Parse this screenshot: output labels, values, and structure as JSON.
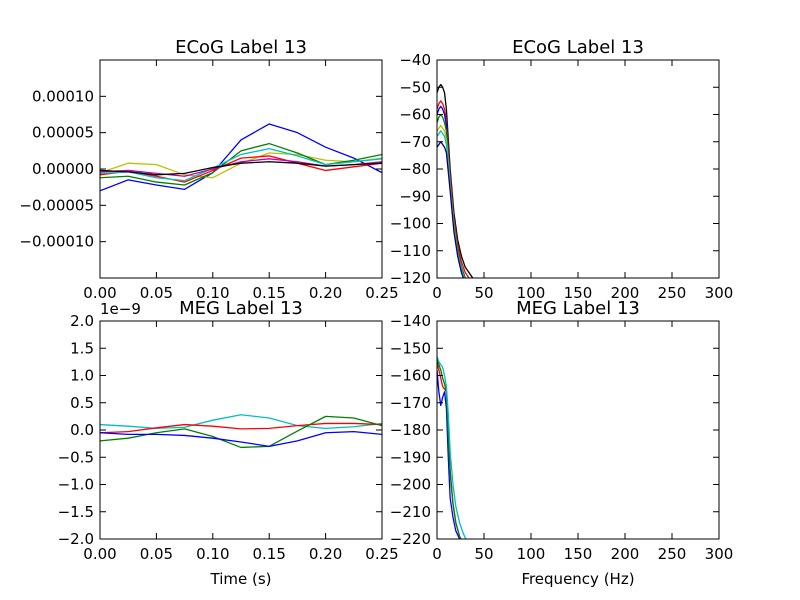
{
  "chart_data": [
    {
      "type": "line",
      "title": "ECoG Label 13",
      "xlabel": "",
      "ylabel": "",
      "xlim": [
        0,
        0.25
      ],
      "ylim": [
        -0.00015,
        0.00015
      ],
      "xticks": [
        0.0,
        0.05,
        0.1,
        0.15,
        0.2,
        0.25
      ],
      "xtick_labels": [
        "0.00",
        "0.05",
        "0.10",
        "0.15",
        "0.20",
        "0.25"
      ],
      "yticks": [
        -0.0001,
        -5e-05,
        0.0,
        5e-05,
        0.0001
      ],
      "ytick_labels": [
        "−0.00010",
        "−0.00005",
        "0.00000",
        "0.00005",
        "0.00010"
      ],
      "x": [
        0.0,
        0.025,
        0.05,
        0.075,
        0.1,
        0.125,
        0.15,
        0.175,
        0.2,
        0.225,
        0.25
      ],
      "series": [
        {
          "color": "#0000ff",
          "values": [
            -3e-05,
            -1.5e-05,
            -2.2e-05,
            -2.8e-05,
            -5e-06,
            4e-05,
            6.2e-05,
            5e-05,
            3e-05,
            1.5e-05,
            -5e-06
          ]
        },
        {
          "color": "#bfbf00",
          "values": [
            -5e-06,
            8e-06,
            6e-06,
            -8e-06,
            -1.2e-05,
            8e-06,
            2.2e-05,
            2e-05,
            1.2e-05,
            1e-05,
            1.5e-05
          ]
        },
        {
          "color": "#008000",
          "values": [
            -1.2e-05,
            -1e-05,
            -1.8e-05,
            -2.2e-05,
            -5e-06,
            2.5e-05,
            3.5e-05,
            2.2e-05,
            6e-06,
            1.2e-05,
            2e-05
          ]
        },
        {
          "color": "#ff0000",
          "values": [
            -8e-06,
            -3e-06,
            -1e-05,
            -1.8e-05,
            -2e-06,
            1.5e-05,
            1.8e-05,
            8e-06,
            -2e-06,
            3e-06,
            8e-06
          ]
        },
        {
          "color": "#00bfbf",
          "values": [
            -6e-06,
            -4e-06,
            -1.2e-05,
            -1.6e-05,
            1e-06,
            2e-05,
            2.8e-05,
            1.8e-05,
            6e-06,
            1e-05,
            1.4e-05
          ]
        },
        {
          "color": "#bf00bf",
          "values": [
            -4e-06,
            -2e-06,
            -6e-06,
            -1e-05,
            0.0,
            1e-05,
            1.4e-05,
            1e-05,
            4e-06,
            6e-06,
            1e-05
          ]
        },
        {
          "color": "#000000",
          "values": [
            -2e-06,
            -4e-06,
            -8e-06,
            -6e-06,
            2e-06,
            8e-06,
            1e-05,
            8e-06,
            4e-06,
            6e-06,
            8e-06
          ]
        }
      ]
    },
    {
      "type": "line",
      "title": "ECoG Label 13",
      "xlabel": "",
      "ylabel": "",
      "xlim": [
        0,
        300
      ],
      "ylim": [
        -120,
        -40
      ],
      "xticks": [
        0,
        50,
        100,
        150,
        200,
        250,
        300
      ],
      "xtick_labels": [
        "0",
        "50",
        "100",
        "150",
        "200",
        "250",
        "300"
      ],
      "yticks": [
        -120,
        -110,
        -100,
        -90,
        -80,
        -70,
        -60,
        -50,
        -40
      ],
      "ytick_labels": [
        "−120",
        "−110",
        "−100",
        "−90",
        "−80",
        "−70",
        "−60",
        "−50",
        "−40"
      ],
      "x": [
        0,
        2,
        4,
        6,
        8,
        10,
        14,
        18,
        22,
        26,
        30,
        34,
        38
      ],
      "series": [
        {
          "color": "#000000",
          "values": [
            -52,
            -50,
            -49,
            -50,
            -52,
            -58,
            -80,
            -96,
            -106,
            -112,
            -116,
            -118,
            -120
          ]
        },
        {
          "color": "#ff0000",
          "values": [
            -58,
            -56,
            -55,
            -56,
            -58,
            -62,
            -82,
            -98,
            -108,
            -114,
            -118,
            -120,
            -122
          ]
        },
        {
          "color": "#0000ff",
          "values": [
            -60,
            -58,
            -57,
            -58,
            -60,
            -64,
            -84,
            -100,
            -110,
            -116,
            -120,
            -122,
            -124
          ]
        },
        {
          "color": "#008000",
          "values": [
            -63,
            -61,
            -60,
            -61,
            -63,
            -66,
            -85,
            -100,
            -110,
            -116,
            -120,
            -122,
            -124
          ]
        },
        {
          "color": "#bfbf00",
          "values": [
            -66,
            -65,
            -64,
            -65,
            -66,
            -69,
            -86,
            -101,
            -111,
            -117,
            -121,
            -123,
            -125
          ]
        },
        {
          "color": "#00bfbf",
          "values": [
            -68,
            -67,
            -66,
            -67,
            -68,
            -71,
            -87,
            -102,
            -111,
            -117,
            -121,
            -123,
            -125
          ]
        },
        {
          "color": "#000080",
          "values": [
            -72,
            -71,
            -70,
            -71,
            -72,
            -74,
            -88,
            -103,
            -112,
            -118,
            -122,
            -124,
            -126
          ]
        }
      ]
    },
    {
      "type": "line",
      "title": "MEG Label 13",
      "xlabel": "Time (s)",
      "ylabel": "",
      "offset_text": "1e−9",
      "xlim": [
        0,
        0.25
      ],
      "ylim": [
        -2.0,
        2.0
      ],
      "xticks": [
        0.0,
        0.05,
        0.1,
        0.15,
        0.2,
        0.25
      ],
      "xtick_labels": [
        "0.00",
        "0.05",
        "0.10",
        "0.15",
        "0.20",
        "0.25"
      ],
      "yticks": [
        -2.0,
        -1.5,
        -1.0,
        -0.5,
        0.0,
        0.5,
        1.0,
        1.5,
        2.0
      ],
      "ytick_labels": [
        "−2.0",
        "−1.5",
        "−1.0",
        "−0.5",
        "0.0",
        "0.5",
        "1.0",
        "1.5",
        "2.0"
      ],
      "x": [
        0.0,
        0.025,
        0.05,
        0.075,
        0.1,
        0.125,
        0.15,
        0.175,
        0.2,
        0.225,
        0.25
      ],
      "series": [
        {
          "color": "#00bfbf",
          "values": [
            0.1,
            0.07,
            0.03,
            0.05,
            0.18,
            0.28,
            0.22,
            0.08,
            0.03,
            0.06,
            0.12
          ]
        },
        {
          "color": "#ff0000",
          "values": [
            -0.05,
            -0.03,
            0.04,
            0.1,
            0.07,
            0.02,
            0.03,
            0.08,
            0.12,
            0.12,
            0.1
          ]
        },
        {
          "color": "#008000",
          "values": [
            -0.2,
            -0.15,
            -0.05,
            0.02,
            -0.12,
            -0.32,
            -0.3,
            -0.02,
            0.25,
            0.22,
            0.08
          ]
        },
        {
          "color": "#0000ff",
          "values": [
            -0.05,
            -0.08,
            -0.08,
            -0.1,
            -0.15,
            -0.22,
            -0.3,
            -0.2,
            -0.05,
            -0.03,
            -0.08
          ]
        }
      ]
    },
    {
      "type": "line",
      "title": "MEG Label 13",
      "xlabel": "Frequency (Hz)",
      "ylabel": "",
      "xlim": [
        0,
        300
      ],
      "ylim": [
        -220,
        -140
      ],
      "xticks": [
        0,
        50,
        100,
        150,
        200,
        250,
        300
      ],
      "xtick_labels": [
        "0",
        "50",
        "100",
        "150",
        "200",
        "250",
        "300"
      ],
      "yticks": [
        -220,
        -210,
        -200,
        -190,
        -180,
        -170,
        -160,
        -150,
        -140
      ],
      "ytick_labels": [
        "−220",
        "−210",
        "−200",
        "−190",
        "−180",
        "−170",
        "−160",
        "−150",
        "−140"
      ],
      "x": [
        0,
        2,
        4,
        6,
        8,
        10,
        12,
        14,
        17,
        20,
        24,
        28,
        32
      ],
      "series": [
        {
          "color": "#0000ff",
          "values": [
            -158,
            -166,
            -171,
            -168,
            -166,
            -172,
            -190,
            -205,
            -212,
            -217,
            -220,
            -222,
            -224
          ]
        },
        {
          "color": "#ff0000",
          "values": [
            -155,
            -158,
            -161,
            -164,
            -165,
            -166,
            -180,
            -195,
            -207,
            -214,
            -219,
            -222,
            -224
          ]
        },
        {
          "color": "#008000",
          "values": [
            -154,
            -156,
            -158,
            -161,
            -163,
            -166,
            -182,
            -196,
            -207,
            -214,
            -219,
            -222,
            -224
          ]
        },
        {
          "color": "#00bfbf",
          "values": [
            -153,
            -155,
            -156,
            -157,
            -160,
            -164,
            -174,
            -188,
            -200,
            -208,
            -214,
            -218,
            -221
          ]
        }
      ]
    }
  ]
}
